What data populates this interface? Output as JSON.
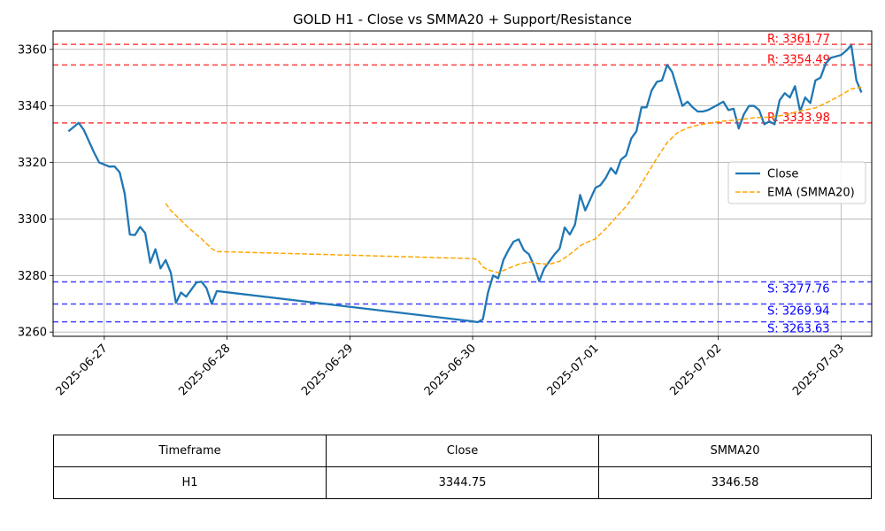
{
  "chart_data": {
    "type": "line",
    "title": "GOLD H1 - Close vs SMMA20 + Support/Resistance",
    "xlabel": "",
    "ylabel": "",
    "xlim": [
      "2025-06-26T14:00",
      "2025-07-03T06:00"
    ],
    "ylim": [
      3258.5,
      3366.5
    ],
    "y_ticks": [
      3260,
      3280,
      3300,
      3320,
      3340,
      3360
    ],
    "x_ticks": [
      "2025-06-27",
      "2025-06-28",
      "2025-06-29",
      "2025-06-30",
      "2025-07-01",
      "2025-07-02",
      "2025-07-03"
    ],
    "grid": true,
    "legend_position": "right",
    "series": [
      {
        "name": "Close",
        "style": "solid",
        "color": "#1f77b4",
        "points": [
          [
            "2025-06-26T17:00",
            3331
          ],
          [
            "2025-06-26T18:00",
            3332.5
          ],
          [
            "2025-06-26T19:00",
            3334
          ],
          [
            "2025-06-26T20:00",
            3331.5
          ],
          [
            "2025-06-26T21:00",
            3327.5
          ],
          [
            "2025-06-26T22:00",
            3323.5
          ],
          [
            "2025-06-26T23:00",
            3320
          ],
          [
            "2025-06-27T01:00",
            3318.5
          ],
          [
            "2025-06-27T02:00",
            3318.6
          ],
          [
            "2025-06-27T03:00",
            3316.5
          ],
          [
            "2025-06-27T04:00",
            3309
          ],
          [
            "2025-06-27T05:00",
            3294.5
          ],
          [
            "2025-06-27T06:00",
            3294.3
          ],
          [
            "2025-06-27T07:00",
            3297.2
          ],
          [
            "2025-06-27T08:00",
            3295
          ],
          [
            "2025-06-27T09:00",
            3284.5
          ],
          [
            "2025-06-27T10:00",
            3289.3
          ],
          [
            "2025-06-27T11:00",
            3282.5
          ],
          [
            "2025-06-27T12:00",
            3285.5
          ],
          [
            "2025-06-27T13:00",
            3281
          ],
          [
            "2025-06-27T14:00",
            3270.3
          ],
          [
            "2025-06-27T15:00",
            3274
          ],
          [
            "2025-06-27T16:00",
            3272.5
          ],
          [
            "2025-06-27T17:00",
            3275
          ],
          [
            "2025-06-27T18:00",
            3277.5
          ],
          [
            "2025-06-27T19:00",
            3277.8
          ],
          [
            "2025-06-27T20:00",
            3275.5
          ],
          [
            "2025-06-27T21:00",
            3270
          ],
          [
            "2025-06-27T22:00",
            3274.5
          ],
          [
            "2025-06-30T00:00",
            3263.8
          ],
          [
            "2025-06-30T01:00",
            3263.5
          ],
          [
            "2025-06-30T02:00",
            3264.5
          ],
          [
            "2025-06-30T03:00",
            3274
          ],
          [
            "2025-06-30T04:00",
            3280
          ],
          [
            "2025-06-30T05:00",
            3279
          ],
          [
            "2025-06-30T06:00",
            3285.5
          ],
          [
            "2025-06-30T07:00",
            3289
          ],
          [
            "2025-06-30T08:00",
            3292
          ],
          [
            "2025-06-30T09:00",
            3292.8
          ],
          [
            "2025-06-30T10:00",
            3289
          ],
          [
            "2025-06-30T11:00",
            3287.5
          ],
          [
            "2025-06-30T12:00",
            3283.5
          ],
          [
            "2025-06-30T13:00",
            3278
          ],
          [
            "2025-06-30T14:00",
            3282.5
          ],
          [
            "2025-06-30T15:00",
            3285
          ],
          [
            "2025-06-30T16:00",
            3287.5
          ],
          [
            "2025-06-30T17:00",
            3289.5
          ],
          [
            "2025-06-30T18:00",
            3297
          ],
          [
            "2025-06-30T19:00",
            3294.5
          ],
          [
            "2025-06-30T20:00",
            3298
          ],
          [
            "2025-06-30T21:00",
            3308.5
          ],
          [
            "2025-06-30T22:00",
            3303
          ],
          [
            "2025-07-01T00:00",
            3311
          ],
          [
            "2025-07-01T01:00",
            3312
          ],
          [
            "2025-07-01T02:00",
            3314.5
          ],
          [
            "2025-07-01T03:00",
            3318
          ],
          [
            "2025-07-01T04:00",
            3316
          ],
          [
            "2025-07-01T05:00",
            3321
          ],
          [
            "2025-07-01T06:00",
            3322.5
          ],
          [
            "2025-07-01T07:00",
            3328.5
          ],
          [
            "2025-07-01T08:00",
            3331
          ],
          [
            "2025-07-01T09:00",
            3339.5
          ],
          [
            "2025-07-01T10:00",
            3339.5
          ],
          [
            "2025-07-01T11:00",
            3345.5
          ],
          [
            "2025-07-01T12:00",
            3348.5
          ],
          [
            "2025-07-01T13:00",
            3349
          ],
          [
            "2025-07-01T14:00",
            3354.5
          ],
          [
            "2025-07-01T15:00",
            3352
          ],
          [
            "2025-07-01T16:00",
            3346
          ],
          [
            "2025-07-01T17:00",
            3340
          ],
          [
            "2025-07-01T18:00",
            3341.5
          ],
          [
            "2025-07-01T19:00",
            3339.5
          ],
          [
            "2025-07-01T20:00",
            3338
          ],
          [
            "2025-07-01T21:00",
            3338
          ],
          [
            "2025-07-01T22:00",
            3338.5
          ],
          [
            "2025-07-02T00:00",
            3340.5
          ],
          [
            "2025-07-02T01:00",
            3341.5
          ],
          [
            "2025-07-02T02:00",
            3338.5
          ],
          [
            "2025-07-02T03:00",
            3339
          ],
          [
            "2025-07-02T04:00",
            3332
          ],
          [
            "2025-07-02T05:00",
            3337
          ],
          [
            "2025-07-02T06:00",
            3340
          ],
          [
            "2025-07-02T07:00",
            3340
          ],
          [
            "2025-07-02T08:00",
            3338.5
          ],
          [
            "2025-07-02T09:00",
            3333.5
          ],
          [
            "2025-07-02T10:00",
            3334.5
          ],
          [
            "2025-07-02T11:00",
            3333.5
          ],
          [
            "2025-07-02T12:00",
            3342
          ],
          [
            "2025-07-02T13:00",
            3344.5
          ],
          [
            "2025-07-02T14:00",
            3343
          ],
          [
            "2025-07-02T15:00",
            3347
          ],
          [
            "2025-07-02T16:00",
            3338
          ],
          [
            "2025-07-02T17:00",
            3343
          ],
          [
            "2025-07-02T18:00",
            3341
          ],
          [
            "2025-07-02T19:00",
            3349
          ],
          [
            "2025-07-02T20:00",
            3350
          ],
          [
            "2025-07-02T21:00",
            3355
          ],
          [
            "2025-07-02T22:00",
            3357
          ],
          [
            "2025-07-03T00:00",
            3358
          ],
          [
            "2025-07-03T01:00",
            3359.5
          ],
          [
            "2025-07-03T02:00",
            3361.5
          ],
          [
            "2025-07-03T03:00",
            3349
          ],
          [
            "2025-07-03T04:00",
            3344.75
          ]
        ]
      },
      {
        "name": "EMA (SMMA20)",
        "style": "dashed",
        "color": "#ffa500",
        "points": [
          [
            "2025-06-27T12:00",
            3305.5
          ],
          [
            "2025-06-27T13:00",
            3303
          ],
          [
            "2025-06-27T15:00",
            3299.5
          ],
          [
            "2025-06-27T17:00",
            3296
          ],
          [
            "2025-06-27T19:00",
            3293
          ],
          [
            "2025-06-27T21:00",
            3289.5
          ],
          [
            "2025-06-27T22:00",
            3288.5
          ],
          [
            "2025-06-30T00:00",
            3286
          ],
          [
            "2025-06-30T01:00",
            3285.5
          ],
          [
            "2025-06-30T02:00",
            3283
          ],
          [
            "2025-06-30T03:00",
            3282
          ],
          [
            "2025-06-30T05:00",
            3281
          ],
          [
            "2025-06-30T07:00",
            3282.5
          ],
          [
            "2025-06-30T09:00",
            3284
          ],
          [
            "2025-06-30T11:00",
            3284.8
          ],
          [
            "2025-06-30T13:00",
            3284.2
          ],
          [
            "2025-06-30T15:00",
            3284
          ],
          [
            "2025-06-30T17:00",
            3285
          ],
          [
            "2025-06-30T19:00",
            3287.5
          ],
          [
            "2025-06-30T21:00",
            3290.5
          ],
          [
            "2025-06-30T22:00",
            3291.5
          ],
          [
            "2025-07-01T00:00",
            3293
          ],
          [
            "2025-07-01T02:00",
            3296.5
          ],
          [
            "2025-07-01T04:00",
            3300.5
          ],
          [
            "2025-07-01T06:00",
            3304.5
          ],
          [
            "2025-07-01T08:00",
            3309.5
          ],
          [
            "2025-07-01T10:00",
            3315.5
          ],
          [
            "2025-07-01T12:00",
            3321.5
          ],
          [
            "2025-07-01T14:00",
            3327
          ],
          [
            "2025-07-01T16:00",
            3330.5
          ],
          [
            "2025-07-01T18:00",
            3332.2
          ],
          [
            "2025-07-01T20:00",
            3333.2
          ],
          [
            "2025-07-01T22:00",
            3333.8
          ],
          [
            "2025-07-02T01:00",
            3334.6
          ],
          [
            "2025-07-02T04:00",
            3335.1
          ],
          [
            "2025-07-02T07:00",
            3335.8
          ],
          [
            "2025-07-02T10:00",
            3336
          ],
          [
            "2025-07-02T13:00",
            3336.8
          ],
          [
            "2025-07-02T16:00",
            3338.2
          ],
          [
            "2025-07-02T19:00",
            3339.3
          ],
          [
            "2025-07-02T21:00",
            3341
          ],
          [
            "2025-07-03T00:00",
            3343.8
          ],
          [
            "2025-07-03T02:00",
            3346
          ],
          [
            "2025-07-03T04:00",
            3346.58
          ]
        ]
      }
    ],
    "levels": [
      {
        "type": "resistance",
        "value": 3361.77,
        "label": "R: 3361.77",
        "color": "#ff0000"
      },
      {
        "type": "resistance",
        "value": 3354.49,
        "label": "R: 3354.49",
        "color": "#ff0000"
      },
      {
        "type": "resistance",
        "value": 3333.98,
        "label": "R: 3333.98",
        "color": "#ff0000"
      },
      {
        "type": "support",
        "value": 3277.76,
        "label": "S: 3277.76",
        "color": "#0000ff"
      },
      {
        "type": "support",
        "value": 3269.94,
        "label": "S: 3269.94",
        "color": "#0000ff"
      },
      {
        "type": "support",
        "value": 3263.63,
        "label": "S: 3263.63",
        "color": "#0000ff"
      }
    ]
  },
  "table": {
    "headers": [
      "Timeframe",
      "Close",
      "SMMA20"
    ],
    "rows": [
      [
        "H1",
        "3344.75",
        "3346.58"
      ]
    ]
  }
}
